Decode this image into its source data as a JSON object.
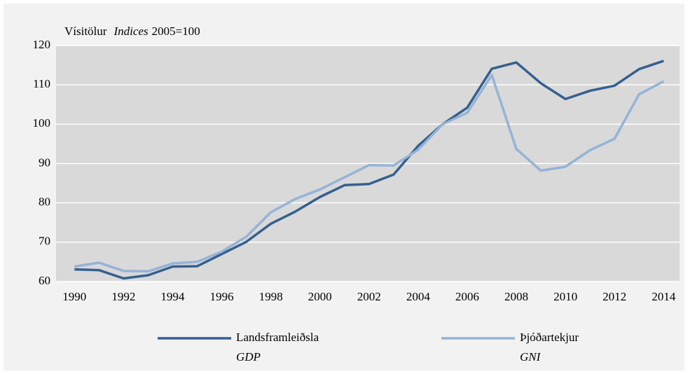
{
  "chart_data": {
    "type": "line",
    "axis_title": {
      "text": "Vísitölur",
      "italic": "Indices",
      "base": "2005=100"
    },
    "x": [
      1990,
      1991,
      1992,
      1993,
      1994,
      1995,
      1996,
      1997,
      1998,
      1999,
      2000,
      2001,
      2002,
      2003,
      2004,
      2005,
      2006,
      2007,
      2008,
      2009,
      2010,
      2011,
      2012,
      2013,
      2014
    ],
    "series": [
      {
        "name": "Landsframleiðsla",
        "name_en": "GDP",
        "color": "#35608f",
        "values": [
          63.1,
          62.9,
          60.8,
          61.6,
          63.8,
          63.9,
          67.0,
          70.1,
          74.7,
          77.8,
          81.5,
          84.5,
          84.8,
          87.2,
          94.5,
          100,
          104.2,
          114.1,
          115.7,
          110.4,
          106.4,
          108.5,
          109.8,
          114.0,
          116.1
        ]
      },
      {
        "name": "Þjóðartekjur",
        "name_en": "GNI",
        "color": "#95b3d7",
        "values": [
          63.8,
          64.8,
          62.7,
          62.6,
          64.6,
          65.0,
          67.6,
          71.4,
          77.6,
          81.0,
          83.4,
          86.5,
          89.6,
          89.5,
          93.5,
          100,
          102.9,
          112.5,
          93.7,
          88.2,
          89.2,
          93.4,
          96.3,
          107.6,
          110.9
        ]
      }
    ],
    "xlim": [
      1989.25,
      2014.65
    ],
    "xticks": [
      1990,
      1992,
      1994,
      1996,
      1998,
      2000,
      2002,
      2004,
      2006,
      2008,
      2010,
      2012,
      2014
    ],
    "ylim": [
      60,
      120
    ],
    "yticks": [
      60,
      70,
      80,
      90,
      100,
      110,
      120
    ],
    "grid": true
  }
}
